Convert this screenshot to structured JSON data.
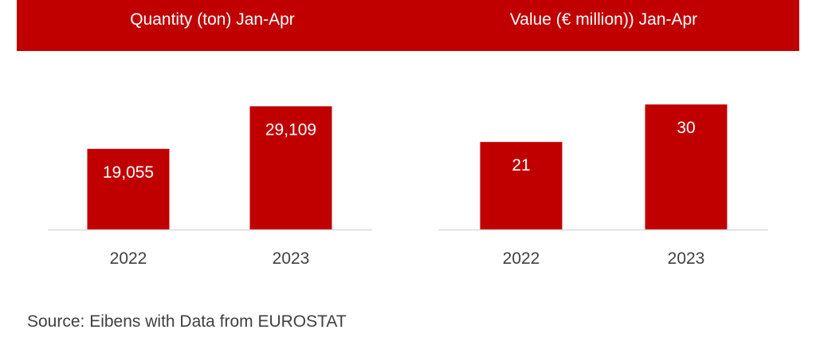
{
  "chart_data": [
    {
      "type": "bar",
      "title": "Quantity (ton) Jan-Apr",
      "categories": [
        "2022",
        "2023"
      ],
      "values": [
        19055,
        29109
      ],
      "labels": [
        "19,055",
        "29,109"
      ],
      "ylim": [
        0,
        32000
      ],
      "color": "#c00000",
      "grid": false,
      "legend": "none"
    },
    {
      "type": "bar",
      "title": "Value (€ million)) Jan-Apr",
      "categories": [
        "2022",
        "2023"
      ],
      "values": [
        21,
        30
      ],
      "labels": [
        "21",
        "30"
      ],
      "ylim": [
        0,
        32.5
      ],
      "color": "#c00000",
      "grid": false,
      "legend": "none"
    }
  ],
  "source": "Source: Eibens with Data from EUROSTAT",
  "colors": {
    "banner": "#c00000",
    "bar": "#c00000",
    "axis": "#d9d9d9",
    "tick_text": "#404040",
    "label_text": "#ffffff"
  }
}
